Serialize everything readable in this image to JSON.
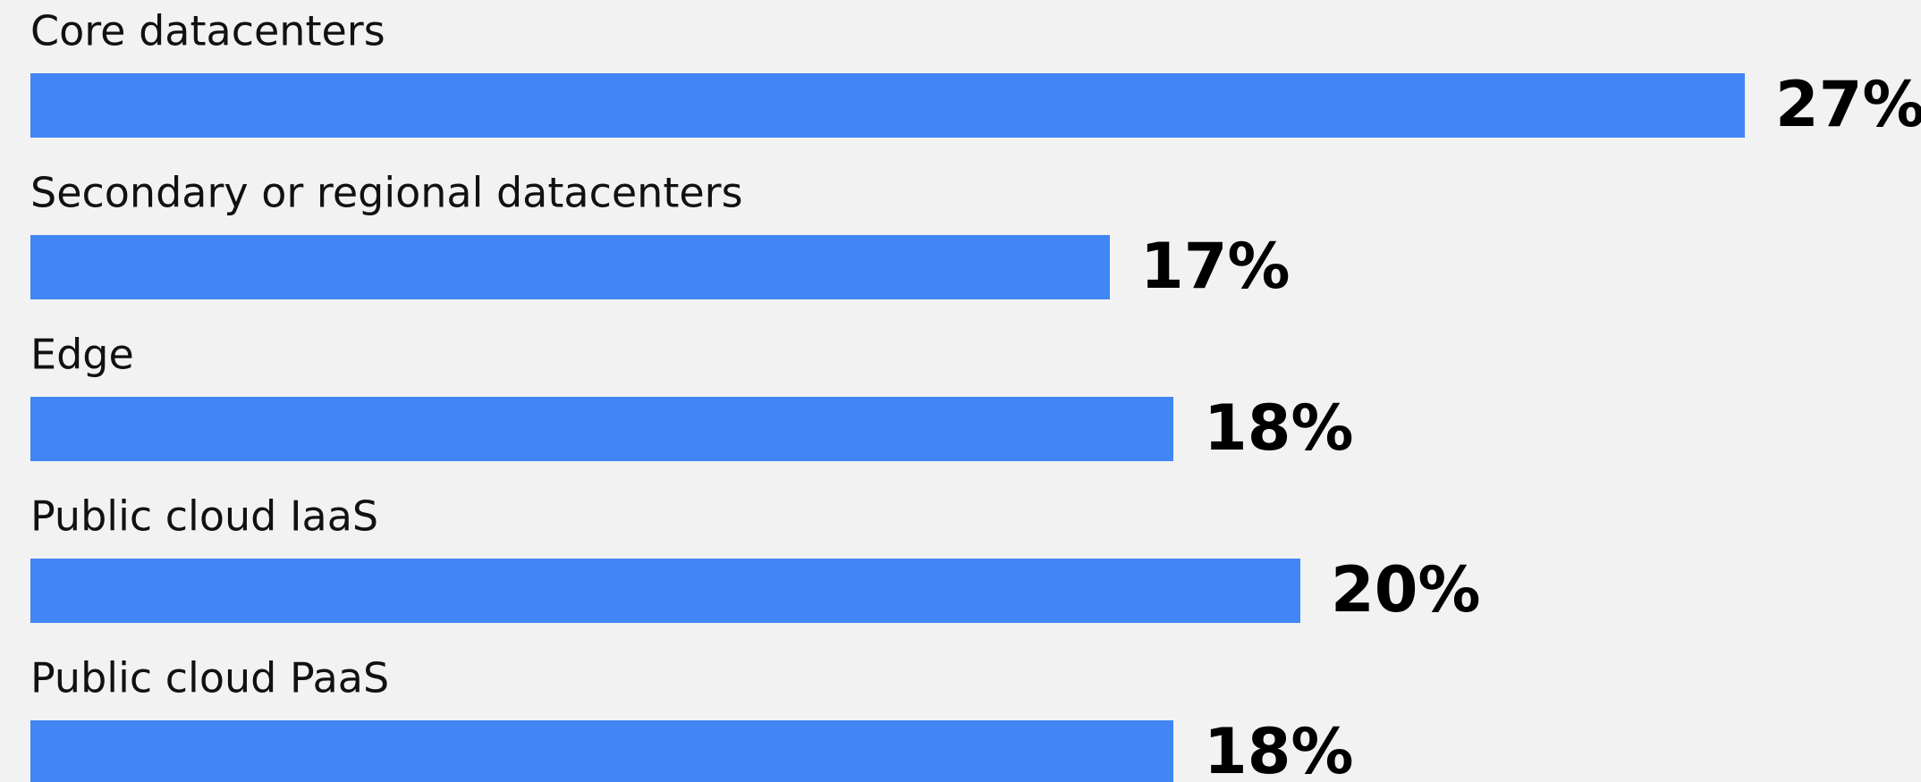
{
  "chart_data": {
    "type": "barh",
    "categories": [
      "Core datacenters",
      "Secondary or regional datacenters",
      "Edge",
      "Public cloud IaaS",
      "Public cloud PaaS"
    ],
    "values": [
      27,
      17,
      18,
      20,
      18
    ],
    "value_labels": [
      "27%",
      "17%",
      "18%",
      "20%",
      "18%"
    ],
    "color": "#4285f4"
  }
}
